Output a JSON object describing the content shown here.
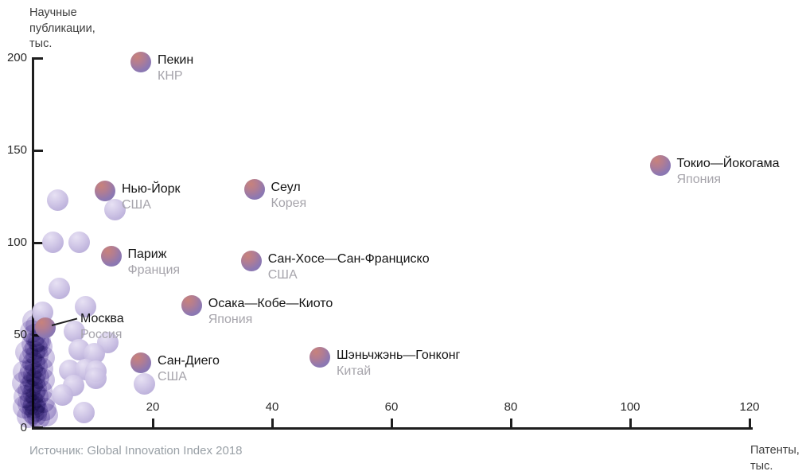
{
  "source": "Источник: Global Innovation Index 2018",
  "axes": {
    "y_title_lines": [
      "Научные",
      "публикации,",
      "тыс."
    ],
    "x_title_lines": [
      "Патенты,",
      "тыс."
    ],
    "y_ticks": [
      0,
      50,
      100,
      150,
      200
    ],
    "x_ticks": [
      20,
      40,
      60,
      80,
      100,
      120
    ]
  },
  "colors": {
    "axis": "#1e1e1e",
    "city_label": "#141414",
    "country_label": "#a6a4ab",
    "source_text": "#99a0a6",
    "bubble_red": "#c8827b",
    "bubble_purple": "#8174ae",
    "bubble_light": "#cdc3e5"
  },
  "chart_data": {
    "type": "scatter",
    "title": "",
    "xlabel": "Патенты, тыс.",
    "ylabel": "Научные публикации, тыс.",
    "xlim": [
      0,
      120
    ],
    "ylim": [
      0,
      200
    ],
    "grid": false,
    "labeled_points": [
      {
        "city": "Пекин",
        "country": "КНР",
        "x": 18,
        "y": 198
      },
      {
        "city": "Токио—Йокогама",
        "country": "Япония",
        "x": 105,
        "y": 142
      },
      {
        "city": "Нью-Йорк",
        "country": "США",
        "x": 12,
        "y": 128
      },
      {
        "city": "Сеул",
        "country": "Корея",
        "x": 37,
        "y": 129
      },
      {
        "city": "Париж",
        "country": "Франция",
        "x": 13,
        "y": 93
      },
      {
        "city": "Сан-Хосе—Сан-Франциско",
        "country": "США",
        "x": 36.5,
        "y": 90
      },
      {
        "city": "Осака—Кобе—Киото",
        "country": "Япония",
        "x": 26.5,
        "y": 66
      },
      {
        "city": "Москва",
        "country": "Россия",
        "x": 2,
        "y": 54,
        "leader": true,
        "ldx": 44,
        "ldy": -21
      },
      {
        "city": "Сан-Диего",
        "country": "США",
        "x": 18,
        "y": 35
      },
      {
        "city": "Шэньчжэнь—Гонконг",
        "country": "Китай",
        "x": 48,
        "y": 38
      }
    ],
    "background_points": [
      [
        4.0,
        123
      ],
      [
        13.6,
        118
      ],
      [
        3.3,
        100.5
      ],
      [
        7.7,
        100.5
      ],
      [
        4.3,
        75.5
      ],
      [
        8.7,
        65.5
      ],
      [
        1.5,
        62.5
      ],
      [
        6.8,
        52
      ],
      [
        12.4,
        46
      ],
      [
        7.7,
        42
      ],
      [
        10.2,
        40
      ],
      [
        6.0,
        31
      ],
      [
        8.7,
        31.5
      ],
      [
        10.4,
        30.5
      ],
      [
        6.7,
        23
      ],
      [
        4.8,
        17.5
      ],
      [
        8.4,
        8
      ],
      [
        18.6,
        23.5
      ],
      [
        10.5,
        26.5
      ]
    ],
    "cluster_points": [
      [
        0,
        57.5
      ],
      [
        0.6,
        55
      ],
      [
        -0.4,
        52
      ],
      [
        0.2,
        50
      ],
      [
        0.7,
        47.5
      ],
      [
        -0.1,
        45
      ],
      [
        0.4,
        43
      ],
      [
        0,
        41
      ],
      [
        0.6,
        39
      ],
      [
        -0.5,
        37
      ],
      [
        0.1,
        35
      ],
      [
        0.5,
        33
      ],
      [
        -0.3,
        31
      ],
      [
        0.2,
        29
      ],
      [
        0.7,
        27
      ],
      [
        0,
        25
      ],
      [
        -0.4,
        23
      ],
      [
        0.3,
        21
      ],
      [
        0.1,
        19
      ],
      [
        0.6,
        17
      ],
      [
        -0.3,
        15
      ],
      [
        0.2,
        13
      ],
      [
        0,
        11
      ],
      [
        0.5,
        9.5
      ],
      [
        -0.1,
        8
      ],
      [
        0.3,
        7
      ],
      [
        1.3,
        44
      ],
      [
        1.6,
        38
      ],
      [
        1.4,
        32
      ],
      [
        1.7,
        26
      ],
      [
        1.3,
        20
      ],
      [
        1.6,
        14
      ],
      [
        1.9,
        10
      ],
      [
        -1.5,
        30
      ],
      [
        -1.7,
        24
      ],
      [
        -1.4,
        17
      ],
      [
        -1.6,
        11
      ],
      [
        2.2,
        7
      ],
      [
        0.9,
        5.5
      ],
      [
        -0.9,
        6
      ],
      [
        -0.6,
        28
      ],
      [
        -0.7,
        20
      ],
      [
        -0.8,
        13
      ],
      [
        1.0,
        47
      ],
      [
        -1.2,
        41
      ]
    ]
  }
}
